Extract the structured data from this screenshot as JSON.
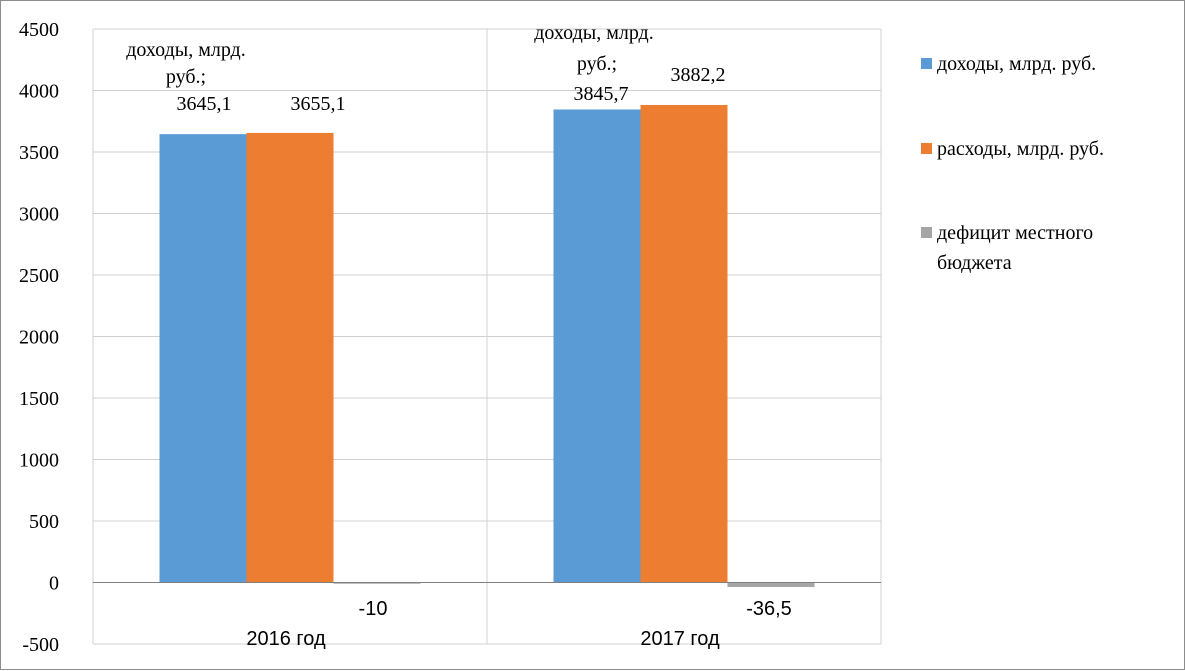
{
  "chart_data": {
    "type": "bar",
    "categories": [
      "2016 год",
      "2017 год"
    ],
    "series": [
      {
        "name": "доходы, млрд. руб.",
        "values": [
          3645.1,
          3845.7
        ],
        "color": "#5b9bd5"
      },
      {
        "name": "расходы, млрд. руб.",
        "values": [
          3655.1,
          3882.2
        ],
        "color": "#ed7d31"
      },
      {
        "name": "дефицит местного бюджета",
        "values": [
          -10,
          -36.5
        ],
        "color": "#a5a5a5"
      }
    ],
    "data_labels": [
      [
        "доходы, млрд. руб.; 3645,1",
        "3655,1",
        "-10"
      ],
      [
        "доходы, млрд. руб.; 3845,7",
        "3882,2",
        "-36,5"
      ]
    ],
    "ylim": [
      -500,
      4500
    ],
    "yticks": [
      -500,
      0,
      500,
      1000,
      1500,
      2000,
      2500,
      3000,
      3500,
      4000,
      4500
    ],
    "xlabel": "",
    "ylabel": "",
    "grid": "horizontal",
    "legend": "right"
  }
}
